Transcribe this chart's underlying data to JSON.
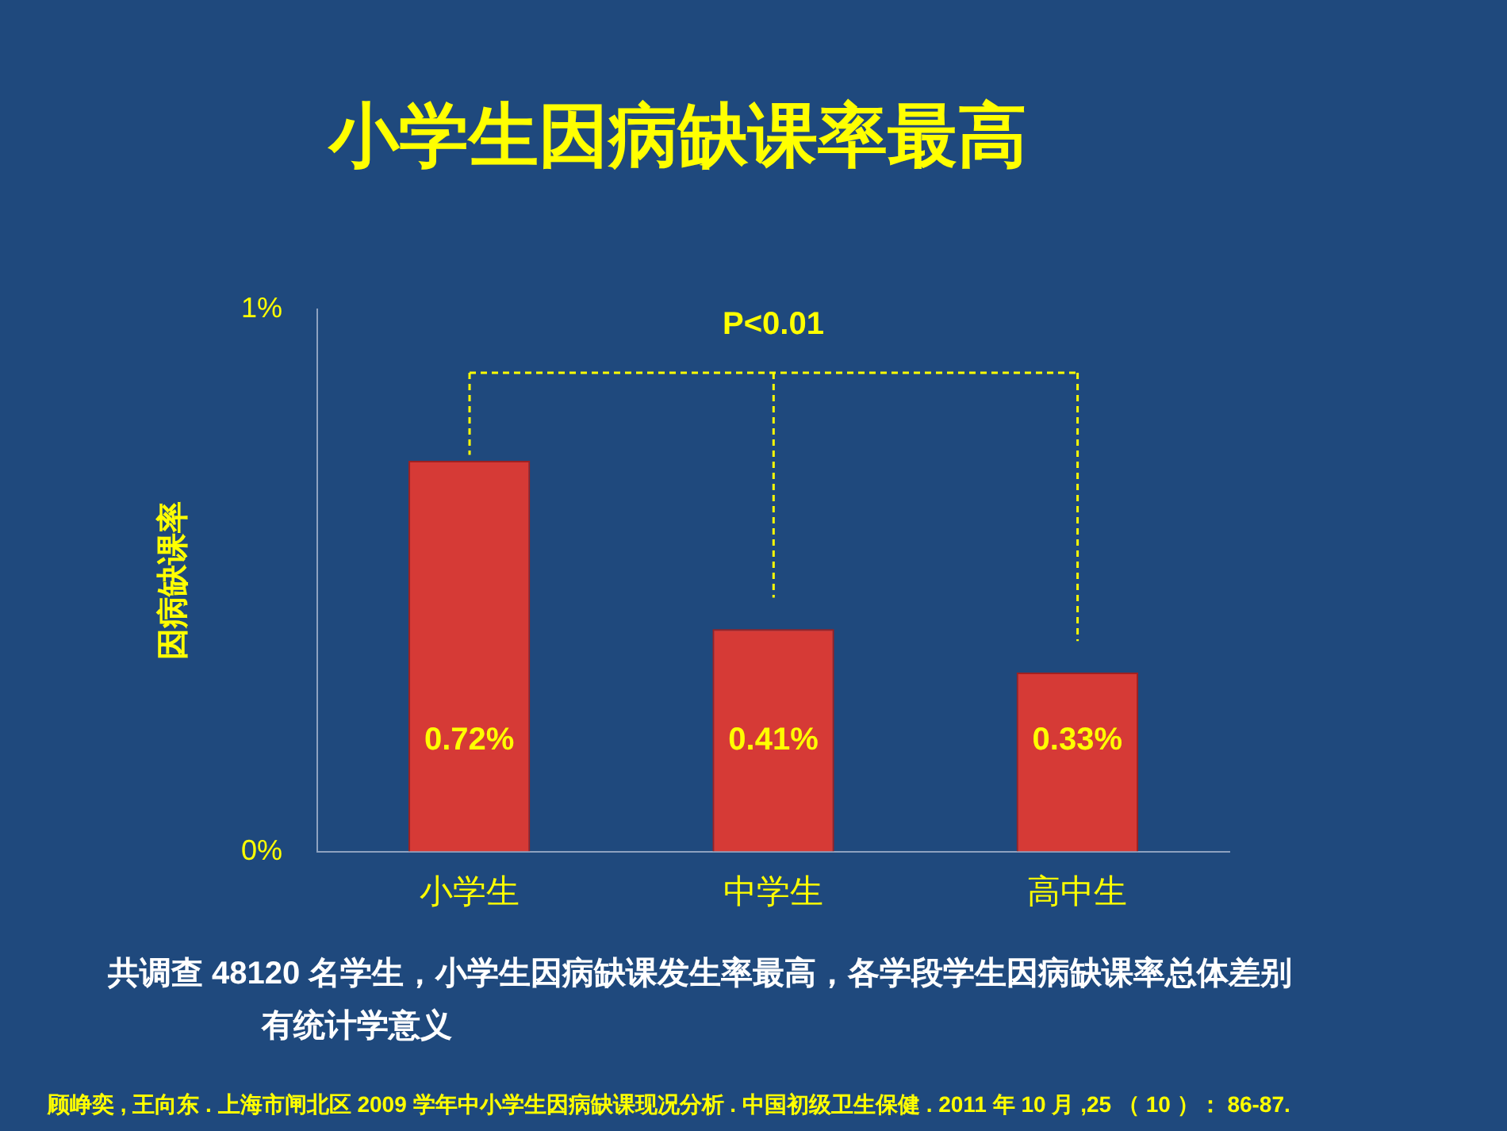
{
  "chart_data": {
    "type": "bar",
    "title": "小学生因病缺课率最高",
    "ylabel": "因病缺课率",
    "categories": [
      "小学生",
      "中学生",
      "高中生"
    ],
    "values": [
      0.72,
      0.41,
      0.33
    ],
    "value_labels": [
      "0.72%",
      "0.41%",
      "0.33%"
    ],
    "color": "#d63a36",
    "ylim": [
      0,
      1
    ],
    "yticks": [
      {
        "value": 0,
        "label": "0%"
      },
      {
        "value": 1,
        "label": "1%"
      }
    ],
    "grid": false,
    "legend": false,
    "annotations": [
      "P<0.01",
      "共调查 48120 名学生，小学生因病缺课发生率最高，各学段学生因病缺课率总体差别有统计学意义",
      "顾峥奕 , 王向东 . 上海市闸北区 2009 学年中小学生因病缺课现况分析 . 中国初级卫生保健 . 2011 年 10 月 ,25 （ 10 ）： 86-87."
    ]
  }
}
